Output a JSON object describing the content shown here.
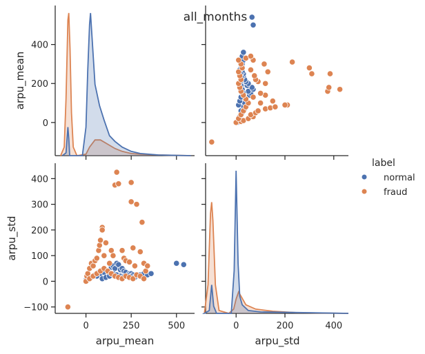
{
  "chart_data": {
    "type": "scatter",
    "title": "all_months",
    "variables": [
      "arpu_mean",
      "arpu_std"
    ],
    "xlabels": [
      "arpu_mean",
      "arpu_std"
    ],
    "ylabels": [
      "arpu_mean",
      "arpu_std"
    ],
    "hue": {
      "title": "label",
      "series": [
        {
          "name": "normal",
          "color": "#4c72b0"
        },
        {
          "name": "fraud",
          "color": "#dd8452"
        }
      ]
    },
    "axes": {
      "arpu_mean": {
        "lim": [
          -170,
          600
        ],
        "ticks": [
          0,
          200,
          400
        ],
        "tick_labels": [
          "0",
          "200",
          "400"
        ],
        "x_ticks": [
          0,
          250,
          500
        ],
        "x_tick_labels": [
          "0",
          "250",
          "500"
        ]
      },
      "arpu_std": {
        "lim": [
          -125,
          460
        ],
        "ticks": [
          -100,
          0,
          100,
          200,
          300,
          400
        ],
        "tick_labels": [
          "−100",
          "0",
          "100",
          "200",
          "300",
          "400"
        ],
        "x_ticks": [
          0,
          200,
          400
        ],
        "x_tick_labels": [
          "0",
          "200",
          "400"
        ]
      }
    },
    "legend_position": "right",
    "diag_arpu_mean": {
      "normal": [
        [
          -130,
          0
        ],
        [
          -110,
          0.02
        ],
        [
          -100,
          0.2
        ],
        [
          -95,
          0.12
        ],
        [
          -90,
          0
        ],
        [
          -60,
          0
        ],
        [
          -20,
          0
        ],
        [
          0,
          0.2
        ],
        [
          10,
          0.6
        ],
        [
          20,
          0.92
        ],
        [
          25,
          1.0
        ],
        [
          35,
          0.8
        ],
        [
          50,
          0.5
        ],
        [
          75,
          0.35
        ],
        [
          100,
          0.25
        ],
        [
          130,
          0.14
        ],
        [
          160,
          0.1
        ],
        [
          200,
          0.06
        ],
        [
          250,
          0.03
        ],
        [
          300,
          0.015
        ],
        [
          400,
          0.005
        ],
        [
          580,
          0
        ]
      ],
      "fraud": [
        [
          -140,
          0
        ],
        [
          -120,
          0.06
        ],
        [
          -110,
          0.4
        ],
        [
          -100,
          0.95
        ],
        [
          -95,
          1.0
        ],
        [
          -88,
          0.75
        ],
        [
          -80,
          0.3
        ],
        [
          -70,
          0.06
        ],
        [
          -50,
          0
        ],
        [
          0,
          0.01
        ],
        [
          20,
          0.06
        ],
        [
          50,
          0.11
        ],
        [
          80,
          0.11
        ],
        [
          120,
          0.08
        ],
        [
          160,
          0.05
        ],
        [
          200,
          0.03
        ],
        [
          250,
          0.015
        ],
        [
          300,
          0.01
        ],
        [
          400,
          0.005
        ],
        [
          580,
          0
        ]
      ]
    },
    "diag_arpu_std": {
      "normal": [
        [
          -130,
          0
        ],
        [
          -110,
          0.02
        ],
        [
          -100,
          0.2
        ],
        [
          -92,
          0.05
        ],
        [
          -80,
          0
        ],
        [
          -20,
          0
        ],
        [
          -8,
          0.3
        ],
        [
          0,
          1.0
        ],
        [
          8,
          0.35
        ],
        [
          15,
          0.12
        ],
        [
          25,
          0.06
        ],
        [
          50,
          0.02
        ],
        [
          100,
          0.01
        ],
        [
          460,
          0
        ]
      ],
      "fraud": [
        [
          -130,
          0
        ],
        [
          -115,
          0.2
        ],
        [
          -105,
          0.7
        ],
        [
          -100,
          0.78
        ],
        [
          -95,
          0.65
        ],
        [
          -85,
          0.2
        ],
        [
          -70,
          0.02
        ],
        [
          -30,
          0
        ],
        [
          -10,
          0.03
        ],
        [
          0,
          0.1
        ],
        [
          10,
          0.15
        ],
        [
          20,
          0.12
        ],
        [
          40,
          0.06
        ],
        [
          80,
          0.03
        ],
        [
          150,
          0.015
        ],
        [
          250,
          0.005
        ],
        [
          460,
          0
        ]
      ]
    },
    "scatter_points": {
      "normal": [
        [
          0,
          5
        ],
        [
          10,
          20
        ],
        [
          30,
          15
        ],
        [
          50,
          25
        ],
        [
          70,
          35
        ],
        [
          80,
          30
        ],
        [
          100,
          35
        ],
        [
          120,
          40
        ],
        [
          140,
          55
        ],
        [
          150,
          60
        ],
        [
          160,
          50
        ],
        [
          170,
          70
        ],
        [
          180,
          65
        ],
        [
          190,
          45
        ],
        [
          200,
          50
        ],
        [
          210,
          40
        ],
        [
          220,
          35
        ],
        [
          240,
          30
        ],
        [
          250,
          30
        ],
        [
          260,
          25
        ],
        [
          280,
          20
        ],
        [
          300,
          25
        ],
        [
          320,
          30
        ],
        [
          340,
          25
        ],
        [
          360,
          30
        ],
        [
          500,
          70
        ],
        [
          540,
          65
        ],
        [
          60,
          20
        ],
        [
          90,
          10
        ],
        [
          110,
          15
        ],
        [
          130,
          20
        ],
        [
          150,
          30
        ],
        [
          170,
          25
        ],
        [
          190,
          20
        ],
        [
          210,
          18
        ],
        [
          230,
          22
        ],
        [
          250,
          18
        ],
        [
          270,
          15
        ]
      ],
      "fraud": [
        [
          -100,
          -100
        ],
        [
          0,
          0
        ],
        [
          5,
          20
        ],
        [
          10,
          30
        ],
        [
          20,
          50
        ],
        [
          30,
          70
        ],
        [
          40,
          60
        ],
        [
          50,
          80
        ],
        [
          60,
          90
        ],
        [
          70,
          120
        ],
        [
          75,
          140
        ],
        [
          80,
          160
        ],
        [
          90,
          210
        ],
        [
          90,
          200
        ],
        [
          100,
          100
        ],
        [
          110,
          150
        ],
        [
          130,
          70
        ],
        [
          140,
          120
        ],
        [
          150,
          100
        ],
        [
          160,
          375
        ],
        [
          170,
          425
        ],
        [
          180,
          380
        ],
        [
          200,
          120
        ],
        [
          210,
          90
        ],
        [
          220,
          80
        ],
        [
          240,
          75
        ],
        [
          250,
          385
        ],
        [
          250,
          310
        ],
        [
          260,
          130
        ],
        [
          270,
          60
        ],
        [
          280,
          300
        ],
        [
          300,
          115
        ],
        [
          310,
          230
        ],
        [
          320,
          70
        ],
        [
          330,
          40
        ],
        [
          340,
          60
        ],
        [
          20,
          10
        ],
        [
          40,
          20
        ],
        [
          60,
          30
        ],
        [
          80,
          40
        ],
        [
          100,
          50
        ],
        [
          120,
          40
        ],
        [
          140,
          30
        ],
        [
          160,
          20
        ],
        [
          180,
          15
        ],
        [
          200,
          10
        ],
        [
          220,
          20
        ],
        [
          240,
          15
        ],
        [
          260,
          10
        ],
        [
          280,
          25
        ],
        [
          300,
          20
        ],
        [
          320,
          10
        ]
      ]
    }
  }
}
